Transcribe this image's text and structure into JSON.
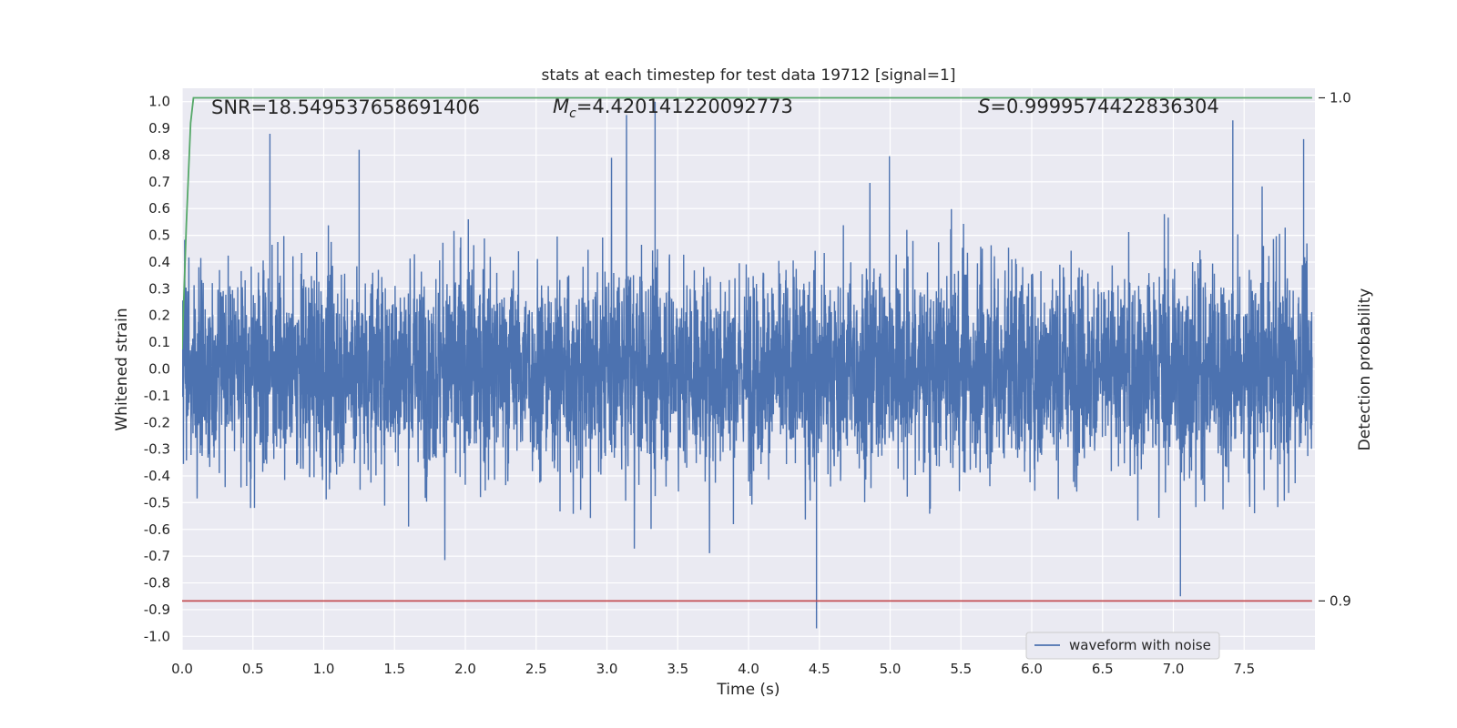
{
  "chart_data": {
    "type": "line",
    "title": "stats at each timestep for test data 19712 [signal=1]",
    "xlabel": "Time (s)",
    "ylabel": "Whitened strain",
    "y2label": "Detection probability",
    "xlim": [
      0,
      8.0
    ],
    "ylim": [
      -1.05,
      1.05
    ],
    "y2lim": [
      0.8903,
      1.0019
    ],
    "x_ticks": [
      0.0,
      0.5,
      1.0,
      1.5,
      2.0,
      2.5,
      3.0,
      3.5,
      4.0,
      4.5,
      5.0,
      5.5,
      6.0,
      6.5,
      7.0,
      7.5
    ],
    "x_tick_labels": [
      "0.0",
      "0.5",
      "1.0",
      "1.5",
      "2.0",
      "2.5",
      "3.0",
      "3.5",
      "4.0",
      "4.5",
      "5.0",
      "5.5",
      "6.0",
      "6.5",
      "7.0",
      "7.5"
    ],
    "y_ticks": [
      1.0,
      0.9,
      0.8,
      0.7,
      0.6,
      0.5,
      0.4,
      0.3,
      0.2,
      0.1,
      0.0,
      -0.1,
      -0.2,
      -0.3,
      -0.4,
      -0.5,
      -0.6,
      -0.7,
      -0.8,
      -0.9,
      -1.0
    ],
    "y_tick_labels": [
      "1.0",
      "0.9",
      "0.8",
      "0.7",
      "0.6",
      "0.5",
      "0.4",
      "0.3",
      "0.2",
      "0.1",
      "0.0",
      "-0.1",
      "-0.2",
      "-0.3",
      "-0.4",
      "-0.5",
      "-0.6",
      "-0.7",
      "-0.8",
      "-0.9",
      "-1.0"
    ],
    "y2_ticks": [
      1.0,
      0.9
    ],
    "y2_tick_labels": [
      "1.0",
      "0.9"
    ],
    "grid": true,
    "legend_position": "lower-right",
    "stats": {
      "snr": "SNR=18.549537658691406",
      "mc_symbol": "M",
      "mc_sub": "c",
      "mc_value": "=4.420141220092773",
      "s_symbol": "S",
      "s_value": "=0.9999574422836304"
    },
    "series": [
      {
        "name": "waveform with noise",
        "color": "#4c72b0",
        "description_noise_amplitude": 0.3,
        "notable_peaks": [
          {
            "x": 0.62,
            "y": 0.88
          },
          {
            "x": 1.25,
            "y": 0.82
          },
          {
            "x": 3.34,
            "y": 1.0
          },
          {
            "x": 4.48,
            "y": -0.97
          },
          {
            "x": 7.05,
            "y": -0.85
          },
          {
            "x": 7.42,
            "y": 0.93
          },
          {
            "x": 7.92,
            "y": 0.86
          }
        ],
        "x_range": [
          0.0,
          7.98
        ]
      },
      {
        "axis": "y2",
        "color": "#55a868",
        "x": [
          0.0,
          0.03,
          0.06,
          0.08,
          0.12,
          7.98
        ],
        "y": [
          0.95,
          0.975,
          0.995,
          1.0,
          1.0,
          1.0
        ]
      },
      {
        "axis": "y2",
        "color": "#c44e52",
        "x": [
          0.0,
          7.98
        ],
        "y": [
          0.9,
          0.9
        ]
      }
    ]
  }
}
